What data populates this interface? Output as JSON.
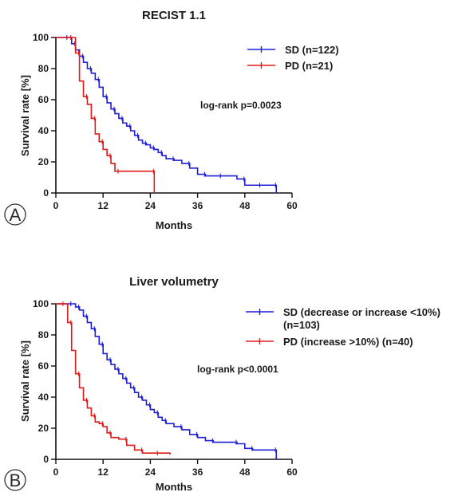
{
  "chart_data": [
    {
      "type": "line",
      "panel_label": "A",
      "title": "RECIST 1.1",
      "xlabel": "Months",
      "ylabel": "Survival rate [%]",
      "xlim": [
        0,
        60
      ],
      "ylim": [
        0,
        100
      ],
      "xticks": [
        "0",
        "12",
        "24",
        "36",
        "48",
        "60"
      ],
      "yticks": [
        "0",
        "20",
        "40",
        "60",
        "80",
        "100"
      ],
      "legend_position": "top-right",
      "annotation": "log-rank p=0.0023",
      "series": [
        {
          "name": "SD (n=122)",
          "color": "#1f1fd6",
          "x": [
            0,
            3,
            4,
            5,
            6,
            7,
            8,
            9,
            10,
            11,
            12,
            13,
            14,
            15,
            16,
            17,
            18,
            19,
            20,
            21,
            22,
            23,
            24,
            25,
            26,
            27,
            28,
            30,
            32,
            34,
            36,
            38,
            40,
            42,
            46,
            48,
            50,
            52,
            54,
            56
          ],
          "y": [
            100,
            100,
            96,
            92,
            88,
            84,
            80,
            77,
            73,
            68,
            62,
            58,
            54,
            51,
            48,
            45,
            43,
            40,
            37,
            34,
            32,
            31,
            29,
            28,
            26,
            24,
            22,
            21,
            19,
            16,
            12,
            11,
            11,
            11,
            9,
            5,
            5,
            5,
            5,
            0
          ]
        },
        {
          "name": "PD (n=21)",
          "color": "#e11a1a",
          "x": [
            0,
            4,
            5,
            6,
            7,
            8,
            9,
            10,
            11,
            12,
            13,
            14,
            15,
            16,
            24,
            25
          ],
          "y": [
            100,
            100,
            90,
            72,
            62,
            57,
            48,
            38,
            33,
            28,
            24,
            19,
            14,
            14,
            14,
            0
          ]
        }
      ]
    },
    {
      "type": "line",
      "panel_label": "B",
      "title": "Liver volumetry",
      "xlabel": "Months",
      "ylabel": "Survival rate [%]",
      "xlim": [
        0,
        60
      ],
      "ylim": [
        0,
        100
      ],
      "xticks": [
        "0",
        "12",
        "24",
        "36",
        "48",
        "60"
      ],
      "yticks": [
        "0",
        "20",
        "40",
        "60",
        "80",
        "100"
      ],
      "legend_position": "top-right",
      "annotation": "log-rank p<0.0001",
      "series": [
        {
          "name": "SD (decrease or increase <10%)",
          "name_line2": "(n=103)",
          "color": "#1f1fd6",
          "x": [
            0,
            4,
            5,
            6,
            7,
            8,
            9,
            10,
            11,
            12,
            13,
            14,
            15,
            16,
            17,
            18,
            19,
            20,
            21,
            22,
            23,
            24,
            25,
            26,
            27,
            28,
            30,
            32,
            34,
            36,
            38,
            40,
            42,
            46,
            48,
            50,
            54,
            56
          ],
          "y": [
            100,
            100,
            98,
            96,
            92,
            88,
            84,
            79,
            74,
            68,
            64,
            61,
            58,
            55,
            52,
            49,
            46,
            43,
            40,
            38,
            35,
            32,
            30,
            27,
            25,
            23,
            21,
            19,
            16,
            14,
            12,
            11,
            11,
            10,
            7,
            6,
            6,
            0
          ]
        },
        {
          "name": "PD (increase >10%) (n=40)",
          "color": "#e11a1a",
          "x": [
            0,
            2,
            3,
            4,
            5,
            6,
            7,
            8,
            9,
            10,
            11,
            12,
            13,
            14,
            16,
            18,
            20,
            22,
            24,
            26,
            29
          ],
          "y": [
            100,
            100,
            88,
            70,
            55,
            46,
            38,
            33,
            28,
            24,
            23,
            21,
            17,
            14,
            13,
            9,
            6,
            4,
            4,
            4,
            3
          ]
        }
      ]
    }
  ]
}
